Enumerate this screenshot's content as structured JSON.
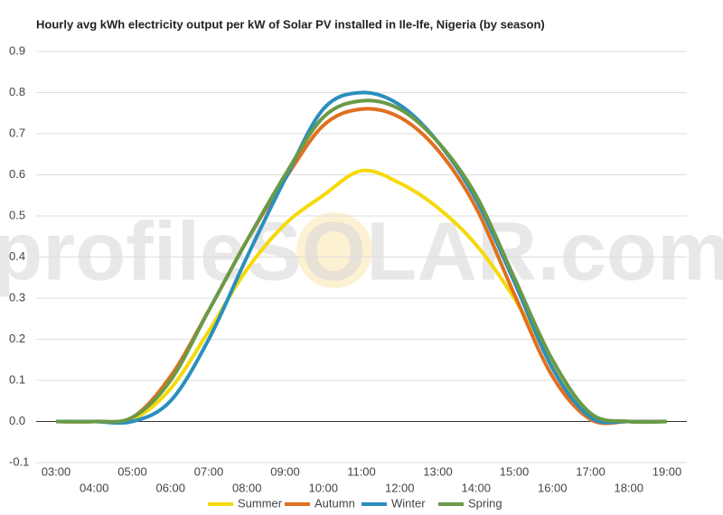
{
  "chart_data": {
    "type": "line",
    "title": "Hourly avg kWh electricity output per kW of Solar PV installed in Ile-Ife, Nigeria (by season)",
    "watermark": "profileSOLAR.com",
    "categories": [
      "03:00",
      "04:00",
      "05:00",
      "06:00",
      "07:00",
      "08:00",
      "09:00",
      "10:00",
      "11:00",
      "12:00",
      "13:00",
      "14:00",
      "15:00",
      "16:00",
      "17:00",
      "18:00",
      "19:00"
    ],
    "series": [
      {
        "name": "Summer",
        "color": "#f5d90a",
        "values": [
          0,
          0,
          0.005,
          0.08,
          0.22,
          0.37,
          0.48,
          0.55,
          0.61,
          0.58,
          0.52,
          0.43,
          0.3,
          0.14,
          0.01,
          0,
          0
        ]
      },
      {
        "name": "Autumn",
        "color": "#e07020",
        "values": [
          0,
          0,
          0.01,
          0.11,
          0.27,
          0.44,
          0.59,
          0.72,
          0.76,
          0.74,
          0.66,
          0.52,
          0.31,
          0.11,
          0.005,
          0,
          0
        ]
      },
      {
        "name": "Winter",
        "color": "#2a8fbd",
        "values": [
          0,
          0,
          0,
          0.05,
          0.2,
          0.4,
          0.59,
          0.76,
          0.8,
          0.77,
          0.68,
          0.54,
          0.34,
          0.13,
          0.01,
          0,
          0
        ]
      },
      {
        "name": "Spring",
        "color": "#6a9a48",
        "values": [
          0,
          0,
          0.01,
          0.1,
          0.27,
          0.44,
          0.6,
          0.74,
          0.78,
          0.76,
          0.68,
          0.55,
          0.35,
          0.15,
          0.02,
          0,
          0
        ]
      }
    ],
    "ylim": [
      -0.1,
      0.9
    ],
    "yticks": [
      -0.1,
      {
        "value": 0,
        "label": "0.0"
      },
      0.1,
      0.2,
      0.3,
      0.4,
      0.5,
      0.6,
      0.7,
      0.8,
      0.9
    ],
    "grid": true,
    "legend": "bottom"
  }
}
